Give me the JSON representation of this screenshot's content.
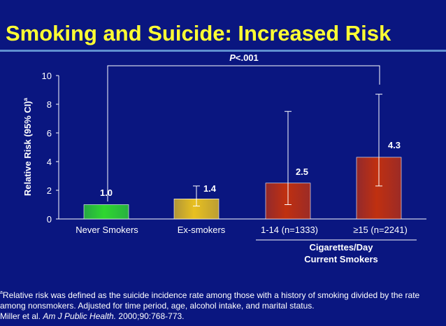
{
  "title": "Smoking and Suicide: Increased Risk",
  "colors": {
    "background": "#0a1680",
    "title": "#ffff33",
    "rule": "#5f8fd0"
  },
  "chart_data": {
    "type": "bar",
    "categories": [
      "Never Smokers",
      "Ex-smokers",
      "1-14 (n=1333)",
      "≥15 (n=2241)"
    ],
    "values": [
      1.0,
      1.4,
      2.5,
      4.3
    ],
    "value_labels": [
      "1.0",
      "1.4",
      "2.5",
      "4.3"
    ],
    "ci_lower": [
      null,
      0.9,
      1.0,
      2.3
    ],
    "ci_upper": [
      null,
      2.3,
      7.5,
      8.7
    ],
    "bar_colors": [
      "#2fd72f",
      "#e8c020",
      "#c03010",
      "#c03010"
    ],
    "ylabel": "Relative Risk (95% CI)",
    "ylabel_sup": "a",
    "yticks": [
      "0",
      "2",
      "4",
      "6",
      "8",
      "10"
    ],
    "ylim": [
      0,
      10
    ],
    "group_label_line1": "Cigarettes/Day",
    "group_label_line2": "Current Smokers",
    "significance_label_prefix": "P",
    "significance_label_suffix": "<.001"
  },
  "footnote": {
    "sup": "a",
    "line1": "Relative risk was defined as the suicide incidence rate among those with a history of smoking divided by the rate among nonsmokers. Adjusted for time period, age, alcohol intake, and marital status.",
    "citation_author": "Miller et al.",
    "citation_journal": "Am J Public Health.",
    "citation_rest": " 2000;90:768-773."
  }
}
